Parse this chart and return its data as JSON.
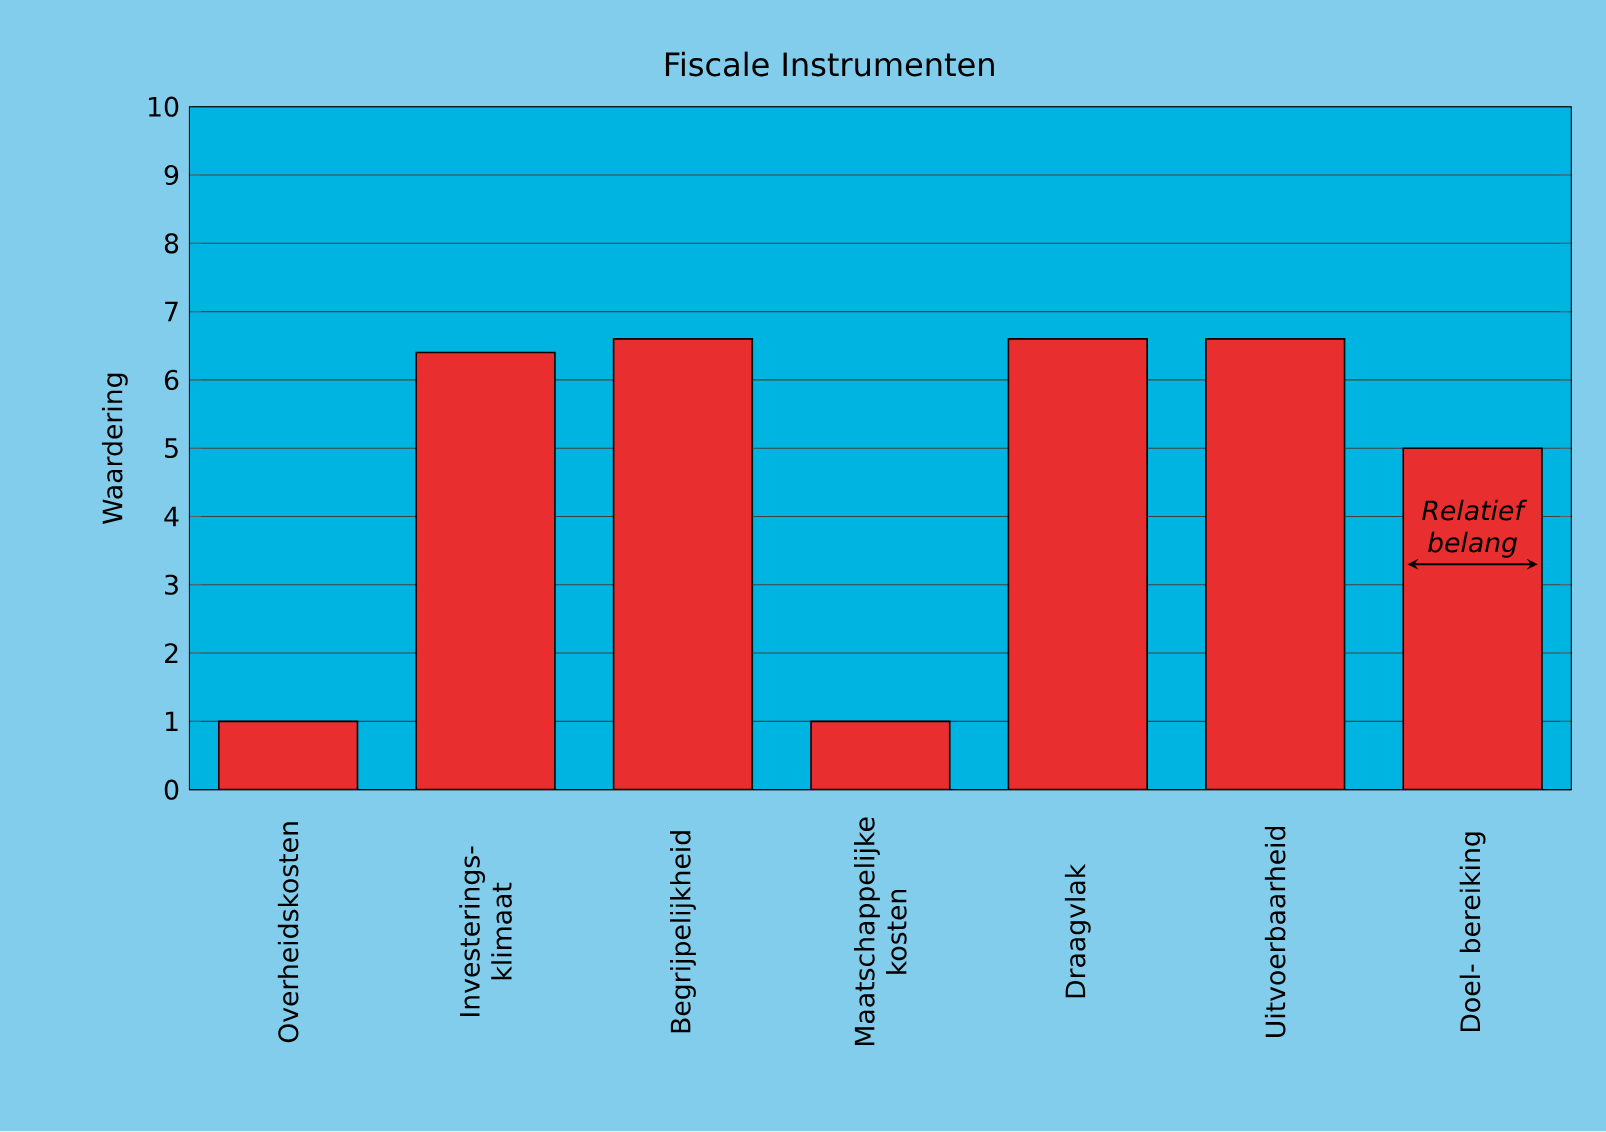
{
  "chart_data": {
    "type": "bar",
    "title": "Fiscale Instrumenten",
    "ylabel": "Waardering",
    "categories": [
      "Overheidskosten",
      "Investerings- klimaat",
      "Begrijpelijkheid",
      "Maatschappelijke kosten",
      "Draagvlak",
      "Uitvoerbaarheid",
      "Doel- bereiking"
    ],
    "values": [
      1,
      6.4,
      6.6,
      1,
      6.6,
      6.6,
      5
    ],
    "color": "#e82e2e",
    "ylim": [
      0,
      10
    ],
    "yticks": [
      0,
      1,
      2,
      3,
      4,
      5,
      6,
      7,
      8,
      9,
      10
    ],
    "grid": "y",
    "annotations": [
      "Relatief belang"
    ]
  }
}
